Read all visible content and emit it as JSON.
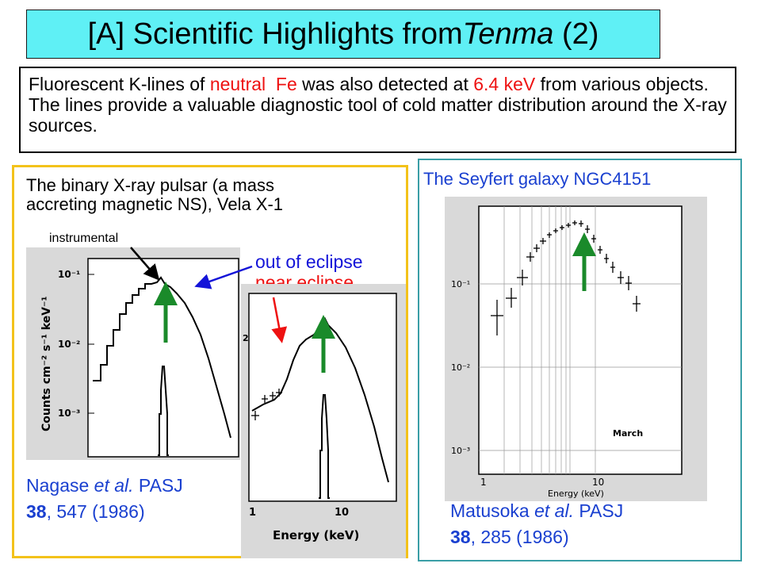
{
  "header": {
    "title_prefix": "[A] Scientific Highlights from ",
    "title_italic": "Tenma",
    "title_suffix": " (2)"
  },
  "intro": {
    "part1": "Fluorescent K-lines of ",
    "red1": "neutral  Fe",
    "part2": " was also detected at ",
    "red2": "6.4 keV",
    "part3": " from various objects. The lines provide a valuable diagnostic tool of cold matter distribution around the X-ray sources."
  },
  "left": {
    "heading_line1": "The binary X-ray pulsar (a mass",
    "heading_line2": "accreting magnetic NS), Vela X-1",
    "instrumental_label": "instrumental",
    "out_of_eclipse": "out of eclipse",
    "near_eclipse": "near eclipse",
    "plot1_ylabel": "Counts cm⁻² s⁻¹ keV⁻¹",
    "plot1_yticks": [
      "10⁻¹",
      "10⁻²",
      "10⁻³"
    ],
    "plot2_xlabel": "Energy (keV)",
    "plot2_xticks": [
      "1",
      "10"
    ],
    "plot2_ytick": "2",
    "citation_author": "Nagase ",
    "citation_etal": "et al.",
    "citation_journal": " PASJ",
    "citation_volume": "38",
    "citation_rest": ", 547 (1986)"
  },
  "right": {
    "heading": "The Seyfert galaxy NGC4151",
    "plot_yticks": [
      "10⁻¹",
      "10⁻²",
      "10⁻³"
    ],
    "plot_xticks": [
      "1",
      "10"
    ],
    "plot_xlabel": "Energy (keV)",
    "plot_legend": "March",
    "citation_author": "Matusoka ",
    "citation_etal": "et al.",
    "citation_journal": " PASJ",
    "citation_volume": "38",
    "citation_rest": ", 285 (1986)"
  },
  "colors": {
    "title_bg": "#5ff0f5",
    "red": "#ee1111",
    "blue_text": "#1414d8",
    "citation": "#1a40d0",
    "green_arrow": "#1a8a2a",
    "yellow_border": "#f3c21a",
    "teal_border": "#3a9ea6"
  }
}
